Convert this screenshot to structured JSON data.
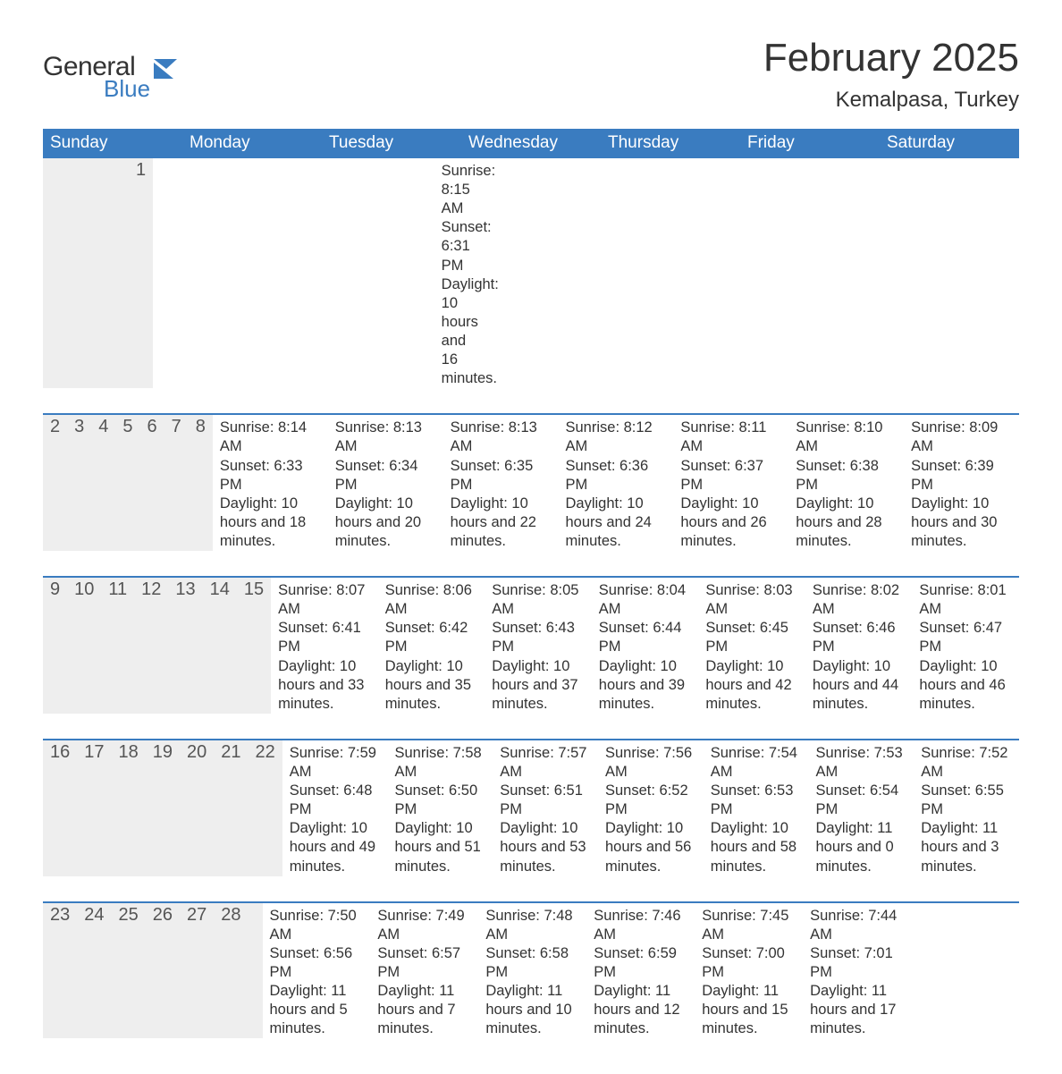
{
  "logo": {
    "general": "General",
    "blue": "Blue",
    "flag_color": "#3a7cc0"
  },
  "title": "February 2025",
  "location": "Kemalpasa, Turkey",
  "colors": {
    "header_bg": "#3a7cc0",
    "header_text": "#ffffff",
    "band_bg": "#eeeeee",
    "rule": "#3a7cc0",
    "text": "#333333"
  },
  "day_headers": [
    "Sunday",
    "Monday",
    "Tuesday",
    "Wednesday",
    "Thursday",
    "Friday",
    "Saturday"
  ],
  "weeks": [
    [
      {
        "num": "",
        "sunrise": "",
        "sunset": "",
        "daylight": ""
      },
      {
        "num": "",
        "sunrise": "",
        "sunset": "",
        "daylight": ""
      },
      {
        "num": "",
        "sunrise": "",
        "sunset": "",
        "daylight": ""
      },
      {
        "num": "",
        "sunrise": "",
        "sunset": "",
        "daylight": ""
      },
      {
        "num": "",
        "sunrise": "",
        "sunset": "",
        "daylight": ""
      },
      {
        "num": "",
        "sunrise": "",
        "sunset": "",
        "daylight": ""
      },
      {
        "num": "1",
        "sunrise": "Sunrise: 8:15 AM",
        "sunset": "Sunset: 6:31 PM",
        "daylight": "Daylight: 10 hours and 16 minutes."
      }
    ],
    [
      {
        "num": "2",
        "sunrise": "Sunrise: 8:14 AM",
        "sunset": "Sunset: 6:33 PM",
        "daylight": "Daylight: 10 hours and 18 minutes."
      },
      {
        "num": "3",
        "sunrise": "Sunrise: 8:13 AM",
        "sunset": "Sunset: 6:34 PM",
        "daylight": "Daylight: 10 hours and 20 minutes."
      },
      {
        "num": "4",
        "sunrise": "Sunrise: 8:13 AM",
        "sunset": "Sunset: 6:35 PM",
        "daylight": "Daylight: 10 hours and 22 minutes."
      },
      {
        "num": "5",
        "sunrise": "Sunrise: 8:12 AM",
        "sunset": "Sunset: 6:36 PM",
        "daylight": "Daylight: 10 hours and 24 minutes."
      },
      {
        "num": "6",
        "sunrise": "Sunrise: 8:11 AM",
        "sunset": "Sunset: 6:37 PM",
        "daylight": "Daylight: 10 hours and 26 minutes."
      },
      {
        "num": "7",
        "sunrise": "Sunrise: 8:10 AM",
        "sunset": "Sunset: 6:38 PM",
        "daylight": "Daylight: 10 hours and 28 minutes."
      },
      {
        "num": "8",
        "sunrise": "Sunrise: 8:09 AM",
        "sunset": "Sunset: 6:39 PM",
        "daylight": "Daylight: 10 hours and 30 minutes."
      }
    ],
    [
      {
        "num": "9",
        "sunrise": "Sunrise: 8:07 AM",
        "sunset": "Sunset: 6:41 PM",
        "daylight": "Daylight: 10 hours and 33 minutes."
      },
      {
        "num": "10",
        "sunrise": "Sunrise: 8:06 AM",
        "sunset": "Sunset: 6:42 PM",
        "daylight": "Daylight: 10 hours and 35 minutes."
      },
      {
        "num": "11",
        "sunrise": "Sunrise: 8:05 AM",
        "sunset": "Sunset: 6:43 PM",
        "daylight": "Daylight: 10 hours and 37 minutes."
      },
      {
        "num": "12",
        "sunrise": "Sunrise: 8:04 AM",
        "sunset": "Sunset: 6:44 PM",
        "daylight": "Daylight: 10 hours and 39 minutes."
      },
      {
        "num": "13",
        "sunrise": "Sunrise: 8:03 AM",
        "sunset": "Sunset: 6:45 PM",
        "daylight": "Daylight: 10 hours and 42 minutes."
      },
      {
        "num": "14",
        "sunrise": "Sunrise: 8:02 AM",
        "sunset": "Sunset: 6:46 PM",
        "daylight": "Daylight: 10 hours and 44 minutes."
      },
      {
        "num": "15",
        "sunrise": "Sunrise: 8:01 AM",
        "sunset": "Sunset: 6:47 PM",
        "daylight": "Daylight: 10 hours and 46 minutes."
      }
    ],
    [
      {
        "num": "16",
        "sunrise": "Sunrise: 7:59 AM",
        "sunset": "Sunset: 6:48 PM",
        "daylight": "Daylight: 10 hours and 49 minutes."
      },
      {
        "num": "17",
        "sunrise": "Sunrise: 7:58 AM",
        "sunset": "Sunset: 6:50 PM",
        "daylight": "Daylight: 10 hours and 51 minutes."
      },
      {
        "num": "18",
        "sunrise": "Sunrise: 7:57 AM",
        "sunset": "Sunset: 6:51 PM",
        "daylight": "Daylight: 10 hours and 53 minutes."
      },
      {
        "num": "19",
        "sunrise": "Sunrise: 7:56 AM",
        "sunset": "Sunset: 6:52 PM",
        "daylight": "Daylight: 10 hours and 56 minutes."
      },
      {
        "num": "20",
        "sunrise": "Sunrise: 7:54 AM",
        "sunset": "Sunset: 6:53 PM",
        "daylight": "Daylight: 10 hours and 58 minutes."
      },
      {
        "num": "21",
        "sunrise": "Sunrise: 7:53 AM",
        "sunset": "Sunset: 6:54 PM",
        "daylight": "Daylight: 11 hours and 0 minutes."
      },
      {
        "num": "22",
        "sunrise": "Sunrise: 7:52 AM",
        "sunset": "Sunset: 6:55 PM",
        "daylight": "Daylight: 11 hours and 3 minutes."
      }
    ],
    [
      {
        "num": "23",
        "sunrise": "Sunrise: 7:50 AM",
        "sunset": "Sunset: 6:56 PM",
        "daylight": "Daylight: 11 hours and 5 minutes."
      },
      {
        "num": "24",
        "sunrise": "Sunrise: 7:49 AM",
        "sunset": "Sunset: 6:57 PM",
        "daylight": "Daylight: 11 hours and 7 minutes."
      },
      {
        "num": "25",
        "sunrise": "Sunrise: 7:48 AM",
        "sunset": "Sunset: 6:58 PM",
        "daylight": "Daylight: 11 hours and 10 minutes."
      },
      {
        "num": "26",
        "sunrise": "Sunrise: 7:46 AM",
        "sunset": "Sunset: 6:59 PM",
        "daylight": "Daylight: 11 hours and 12 minutes."
      },
      {
        "num": "27",
        "sunrise": "Sunrise: 7:45 AM",
        "sunset": "Sunset: 7:00 PM",
        "daylight": "Daylight: 11 hours and 15 minutes."
      },
      {
        "num": "28",
        "sunrise": "Sunrise: 7:44 AM",
        "sunset": "Sunset: 7:01 PM",
        "daylight": "Daylight: 11 hours and 17 minutes."
      },
      {
        "num": "",
        "sunrise": "",
        "sunset": "",
        "daylight": ""
      }
    ]
  ]
}
